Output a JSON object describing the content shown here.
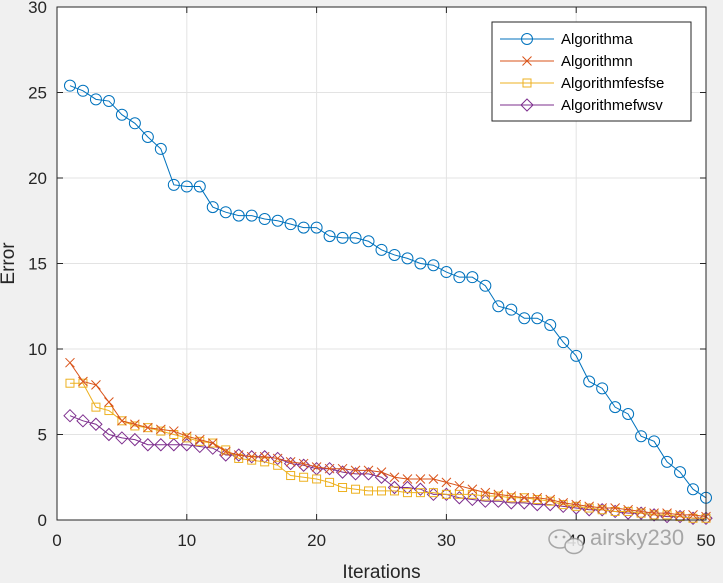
{
  "chart_data": {
    "type": "line",
    "xlabel": "Iterations",
    "ylabel": "Error",
    "xlim": [
      0,
      50
    ],
    "ylim": [
      0,
      30
    ],
    "xticks": [
      0,
      10,
      20,
      30,
      40,
      50
    ],
    "yticks": [
      0,
      5,
      10,
      15,
      20,
      25,
      30
    ],
    "grid": true,
    "legend_position": "top-right",
    "x": [
      1,
      2,
      3,
      4,
      5,
      6,
      7,
      8,
      9,
      10,
      11,
      12,
      13,
      14,
      15,
      16,
      17,
      18,
      19,
      20,
      21,
      22,
      23,
      24,
      25,
      26,
      27,
      28,
      29,
      30,
      31,
      32,
      33,
      34,
      35,
      36,
      37,
      38,
      39,
      40,
      41,
      42,
      43,
      44,
      45,
      46,
      47,
      48,
      49,
      50
    ],
    "series": [
      {
        "name": "Algorithma",
        "color": "#0072BD",
        "marker": "circle",
        "values": [
          25.4,
          25.1,
          24.6,
          24.5,
          23.7,
          23.2,
          22.4,
          21.7,
          19.6,
          19.5,
          19.5,
          18.3,
          18.0,
          17.8,
          17.8,
          17.6,
          17.5,
          17.3,
          17.1,
          17.1,
          16.6,
          16.5,
          16.5,
          16.3,
          15.8,
          15.5,
          15.3,
          15.0,
          14.9,
          14.5,
          14.2,
          14.2,
          13.7,
          12.5,
          12.3,
          11.8,
          11.8,
          11.4,
          10.4,
          9.6,
          8.1,
          7.7,
          6.6,
          6.2,
          4.9,
          4.6,
          3.4,
          2.8,
          1.8,
          1.3
        ]
      },
      {
        "name": "Algorithmn",
        "color": "#D95319",
        "marker": "x",
        "values": [
          9.2,
          8.1,
          7.9,
          6.9,
          5.8,
          5.6,
          5.4,
          5.3,
          5.2,
          4.9,
          4.7,
          4.5,
          4.0,
          3.8,
          3.7,
          3.7,
          3.6,
          3.4,
          3.3,
          3.1,
          3.0,
          3.0,
          2.9,
          2.9,
          2.8,
          2.5,
          2.4,
          2.4,
          2.4,
          2.2,
          2.0,
          1.8,
          1.6,
          1.5,
          1.4,
          1.3,
          1.3,
          1.2,
          1.0,
          0.9,
          0.8,
          0.7,
          0.7,
          0.6,
          0.5,
          0.4,
          0.4,
          0.3,
          0.3,
          0.2
        ]
      },
      {
        "name": "Algorithmfesfse",
        "color": "#EDB120",
        "marker": "square",
        "values": [
          8.0,
          8.0,
          6.6,
          6.4,
          5.8,
          5.5,
          5.4,
          5.2,
          5.0,
          4.8,
          4.6,
          4.5,
          4.1,
          3.6,
          3.5,
          3.4,
          3.2,
          2.6,
          2.5,
          2.4,
          2.2,
          1.9,
          1.8,
          1.7,
          1.7,
          1.7,
          1.6,
          1.6,
          1.6,
          1.5,
          1.5,
          1.5,
          1.4,
          1.4,
          1.3,
          1.3,
          1.2,
          1.1,
          0.9,
          0.8,
          0.7,
          0.6,
          0.5,
          0.5,
          0.4,
          0.3,
          0.3,
          0.2,
          0.1,
          0.1
        ]
      },
      {
        "name": "Algorithmefwsv",
        "color": "#7E2F8E",
        "marker": "diamond",
        "values": [
          6.1,
          5.8,
          5.6,
          5.0,
          4.8,
          4.7,
          4.4,
          4.4,
          4.4,
          4.4,
          4.3,
          4.2,
          3.8,
          3.8,
          3.7,
          3.7,
          3.6,
          3.3,
          3.2,
          3.0,
          3.0,
          2.8,
          2.7,
          2.7,
          2.5,
          1.9,
          1.9,
          1.8,
          1.5,
          1.5,
          1.3,
          1.2,
          1.1,
          1.1,
          1.0,
          1.0,
          0.9,
          0.9,
          0.8,
          0.7,
          0.6,
          0.6,
          0.5,
          0.4,
          0.4,
          0.3,
          0.2,
          0.2,
          0.1,
          0.1
        ]
      }
    ]
  },
  "watermark": {
    "text": "airsky230"
  }
}
